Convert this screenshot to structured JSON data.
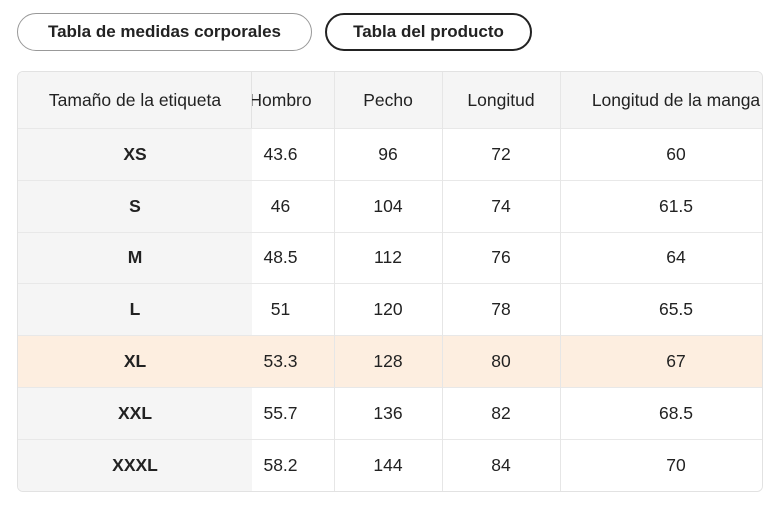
{
  "tabs": [
    "Tabla de medidas corporales",
    "Tabla del producto"
  ],
  "table": {
    "header": [
      "Tamaño de la etiqueta",
      "Hombro",
      "Pecho",
      "Longitud",
      "Longitud de la manga"
    ],
    "rows": [
      [
        "XS",
        "43.6",
        "96",
        "72",
        "60"
      ],
      [
        "S",
        "46",
        "104",
        "74",
        "61.5"
      ],
      [
        "M",
        "48.5",
        "112",
        "76",
        "64"
      ],
      [
        "L",
        "51",
        "120",
        "78",
        "65.5"
      ],
      [
        "XL",
        "53.3",
        "128",
        "80",
        "67"
      ],
      [
        "XXL",
        "55.7",
        "136",
        "82",
        "68.5"
      ],
      [
        "XXXL",
        "58.2",
        "144",
        "84",
        "70"
      ]
    ],
    "highlight_row": 4
  }
}
